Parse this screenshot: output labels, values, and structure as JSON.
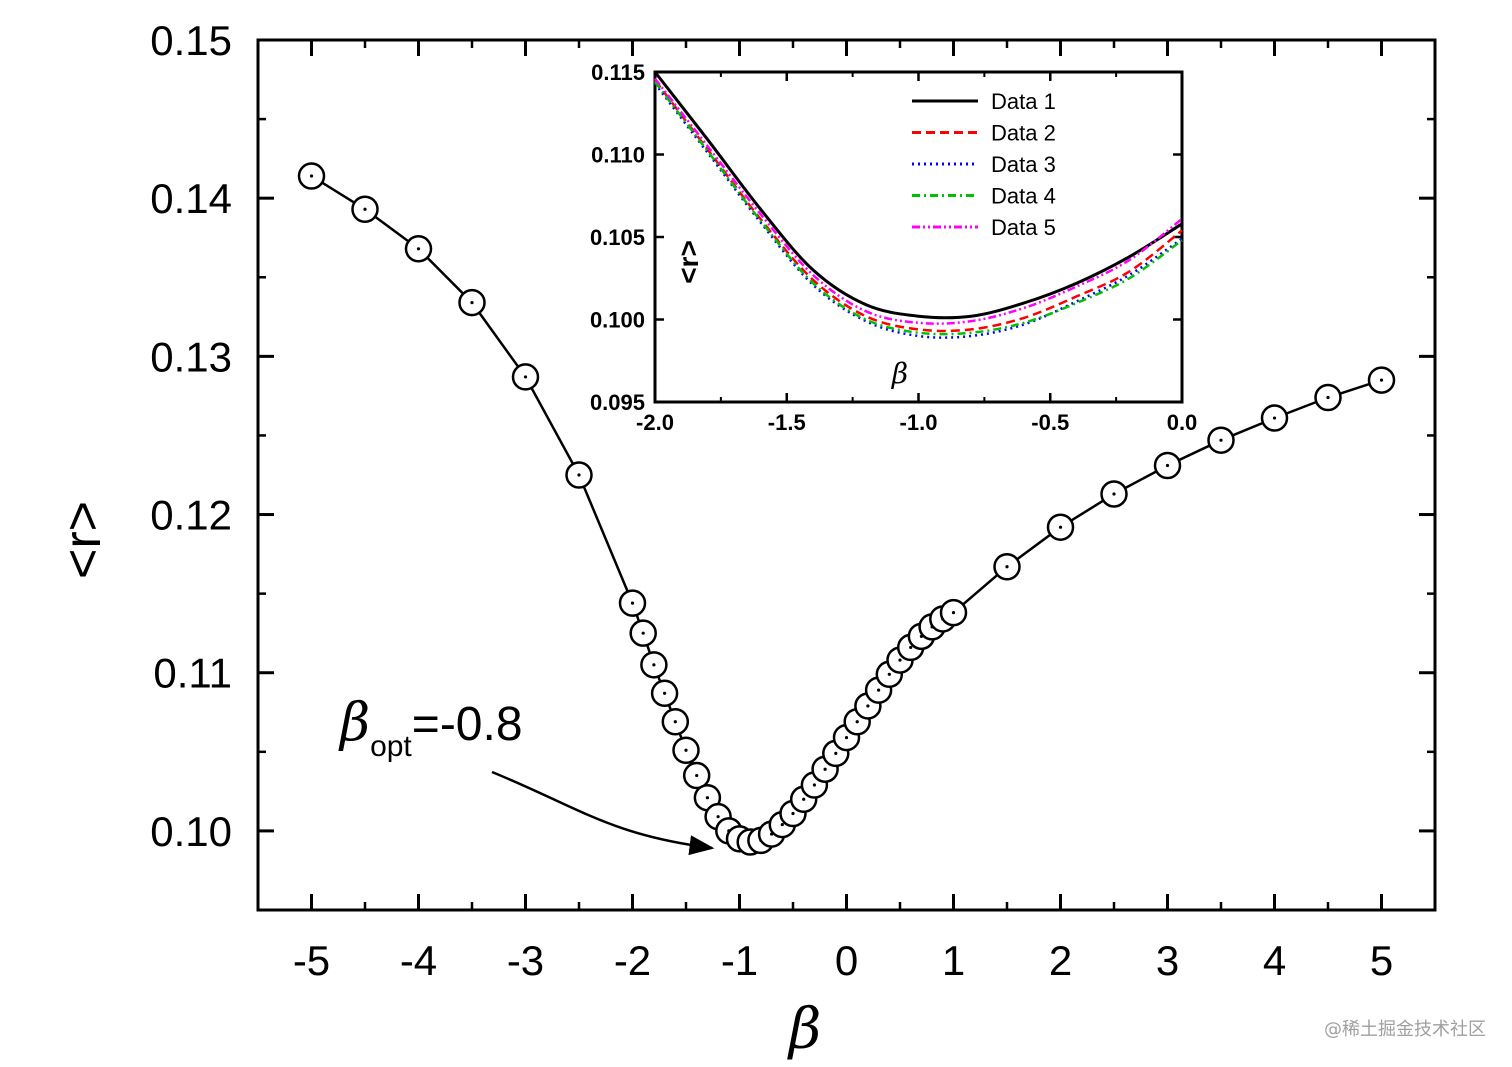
{
  "chart_data": [
    {
      "name": "main",
      "type": "line",
      "title": "",
      "xlabel": "β",
      "ylabel": "<r>",
      "xlim": [
        -5.5,
        5.5
      ],
      "ylim": [
        0.095,
        0.15
      ],
      "xticks": [
        -5,
        -4,
        -3,
        -2,
        -1,
        0,
        1,
        2,
        3,
        4,
        5
      ],
      "xtick_labels": [
        "-5",
        "-4",
        "-3",
        "-2",
        "-1",
        "0",
        "1",
        "2",
        "3",
        "4",
        "5"
      ],
      "yticks": [
        0.1,
        0.11,
        0.12,
        0.13,
        0.14,
        0.15
      ],
      "ytick_labels": [
        "0.10",
        "0.11",
        "0.12",
        "0.13",
        "0.14",
        "0.15"
      ],
      "marker": "open-circle",
      "x": [
        -5,
        -4.5,
        -4,
        -3.5,
        -3,
        -2.5,
        -2,
        -1.9,
        -1.8,
        -1.7,
        -1.6,
        -1.5,
        -1.4,
        -1.3,
        -1.2,
        -1.1,
        -1.0,
        -0.9,
        -0.8,
        -0.7,
        -0.6,
        -0.5,
        -0.4,
        -0.3,
        -0.2,
        -0.1,
        0,
        0.1,
        0.2,
        0.3,
        0.4,
        0.5,
        0.6,
        0.7,
        0.8,
        0.9,
        1.0,
        1.5,
        2,
        2.5,
        3,
        3.5,
        4,
        4.5,
        5
      ],
      "y": [
        0.1414,
        0.1393,
        0.1368,
        0.1334,
        0.1287,
        0.1225,
        0.1144,
        0.1125,
        0.1105,
        0.1087,
        0.1069,
        0.1051,
        0.1035,
        0.1021,
        0.1009,
        0.1,
        0.0995,
        0.0993,
        0.0994,
        0.0998,
        0.1004,
        0.1011,
        0.102,
        0.1029,
        0.1039,
        0.1049,
        0.1059,
        0.1069,
        0.1079,
        0.1089,
        0.1099,
        0.1108,
        0.1116,
        0.1123,
        0.1129,
        0.1134,
        0.1138,
        0.1167,
        0.1192,
        0.1213,
        0.1231,
        0.1247,
        0.1261,
        0.1274,
        0.1285
      ],
      "annotations": [
        {
          "symbol": "β",
          "subscript": "opt",
          "value": "=-0.8",
          "points_to": [
            -1.25,
            0.0988
          ]
        }
      ]
    },
    {
      "name": "inset",
      "type": "line",
      "xlabel": "β",
      "ylabel": "<r>",
      "xlim": [
        -2.0,
        0.0
      ],
      "ylim": [
        0.095,
        0.115
      ],
      "xticks": [
        -2.0,
        -1.5,
        -1.0,
        -0.5,
        0.0
      ],
      "xtick_labels": [
        "-2.0",
        "-1.5",
        "-1.0",
        "-0.5",
        "0.0"
      ],
      "yticks": [
        0.095,
        0.1,
        0.105,
        0.11,
        0.115
      ],
      "ytick_labels": [
        "0.095",
        "0.100",
        "0.105",
        "0.110",
        "0.115"
      ],
      "legend_position": "top-right",
      "x": [
        -2.0,
        -1.8,
        -1.6,
        -1.4,
        -1.2,
        -1.0,
        -0.8,
        -0.6,
        -0.4,
        -0.2,
        0.0
      ],
      "series": [
        {
          "name": "Data 1",
          "color": "#000000",
          "dash": "solid",
          "values": [
            0.115,
            0.1109,
            0.1067,
            0.103,
            0.1009,
            0.1002,
            0.1002,
            0.101,
            0.1022,
            0.1038,
            0.1058
          ]
        },
        {
          "name": "Data 2",
          "color": "#ff0000",
          "dash": "dashed",
          "values": [
            0.1145,
            0.1103,
            0.1061,
            0.1024,
            0.1002,
            0.0994,
            0.0994,
            0.1001,
            0.1014,
            0.1029,
            0.1054
          ]
        },
        {
          "name": "Data 3",
          "color": "#0000ff",
          "dash": "dotted",
          "values": [
            0.1143,
            0.1101,
            0.1059,
            0.1021,
            0.0999,
            0.099,
            0.099,
            0.0997,
            0.1011,
            0.1027,
            0.1049
          ]
        },
        {
          "name": "Data 4",
          "color": "#00c000",
          "dash": "dash-dot",
          "values": [
            0.1144,
            0.1102,
            0.106,
            0.1022,
            0.1,
            0.0992,
            0.0992,
            0.0998,
            0.101,
            0.1025,
            0.1048
          ]
        },
        {
          "name": "Data 5",
          "color": "#ff00ff",
          "dash": "dash-dot-dot",
          "values": [
            0.1146,
            0.1105,
            0.1064,
            0.1027,
            0.1005,
            0.0998,
            0.0999,
            0.1007,
            0.102,
            0.1036,
            0.1061
          ]
        }
      ]
    }
  ],
  "watermark": "@稀土掘金技术社区"
}
